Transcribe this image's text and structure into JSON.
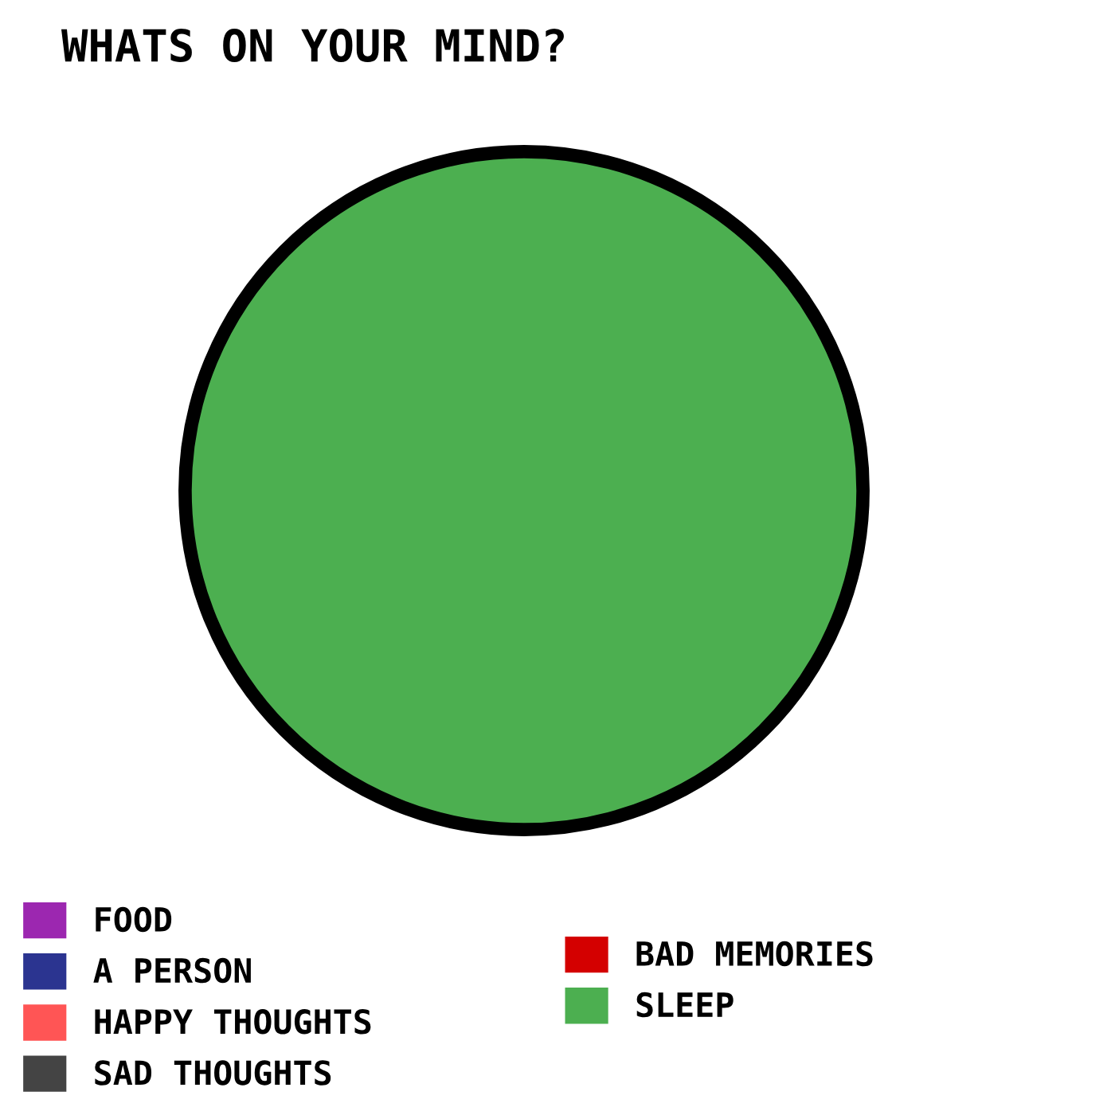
{
  "chart_data": {
    "type": "pie",
    "title": "WHATS ON YOUR MIND?",
    "categories": [
      "FOOD",
      "A PERSON",
      "HAPPY THOUGHTS",
      "SAD THOUGHTS",
      "BAD MEMORIES",
      "SLEEP"
    ],
    "values": [
      0,
      0,
      0,
      0,
      0,
      100
    ],
    "colors": [
      "#9c27b0",
      "#2b3490",
      "#ff5555",
      "#444444",
      "#d40000",
      "#4caf50"
    ],
    "legend": "bottom left"
  }
}
